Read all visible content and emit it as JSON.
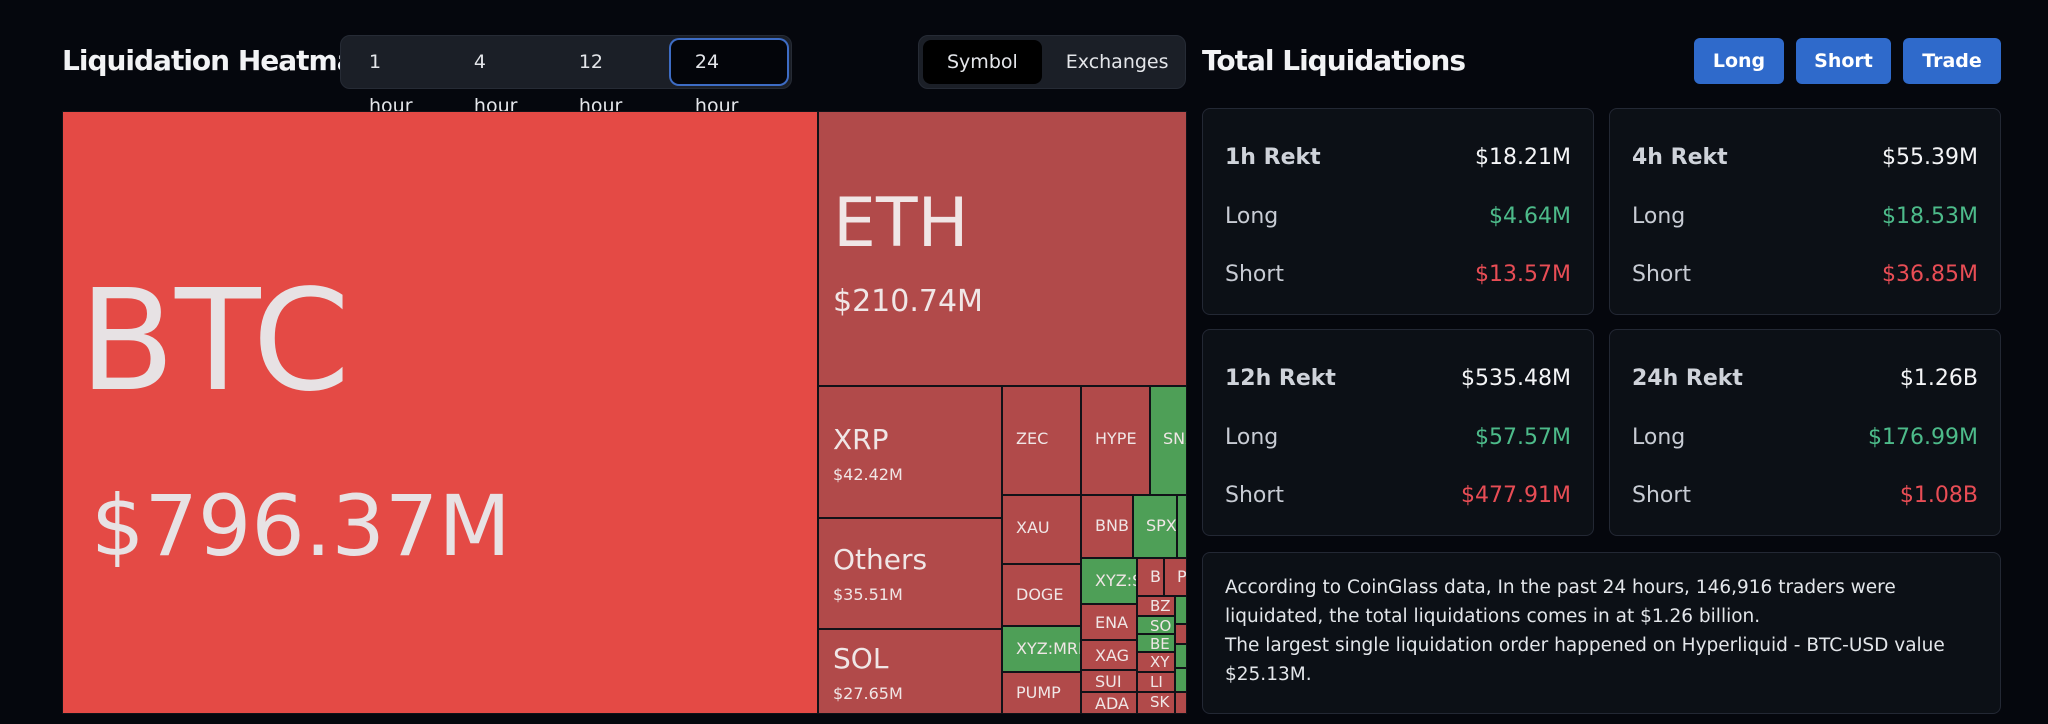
{
  "header": {
    "title": "Liquidation Heatmap",
    "time_tabs": [
      "1 hour",
      "4 hour",
      "12 hour",
      "24 hour"
    ],
    "active_time_tab": "24 hour",
    "view_tabs": [
      "Symbol",
      "Exchanges"
    ],
    "active_view_tab": "Symbol"
  },
  "totals": {
    "title": "Total Liquidations",
    "buttons": {
      "long": "Long",
      "short": "Short",
      "trade": "Trade"
    },
    "cards": [
      {
        "label": "1h Rekt",
        "total": "$18.21M",
        "long_label": "Long",
        "long": "$4.64M",
        "short_label": "Short",
        "short": "$13.57M"
      },
      {
        "label": "4h Rekt",
        "total": "$55.39M",
        "long_label": "Long",
        "long": "$18.53M",
        "short_label": "Short",
        "short": "$36.85M"
      },
      {
        "label": "12h Rekt",
        "total": "$535.48M",
        "long_label": "Long",
        "long": "$57.57M",
        "short_label": "Short",
        "short": "$477.91M"
      },
      {
        "label": "24h Rekt",
        "total": "$1.26B",
        "long_label": "Long",
        "long": "$176.99M",
        "short_label": "Short",
        "short": "$1.08B"
      }
    ],
    "summary_line1": "According to CoinGlass data, In the past 24 hours, 146,916 traders were liquidated, the total liquidations comes in at $1.26 billion.",
    "summary_line2": "The largest single liquidation order happened on Hyperliquid - BTC-USD value $25.13M."
  },
  "heatmap": {
    "btc": {
      "symbol": "BTC",
      "value": "$796.37M"
    },
    "eth": {
      "symbol": "ETH",
      "value": "$210.74M"
    },
    "xrp": {
      "symbol": "XRP",
      "value": "$42.42M"
    },
    "others": {
      "symbol": "Others",
      "value": "$35.51M"
    },
    "sol": {
      "symbol": "SOL",
      "value": "$27.65M"
    },
    "small": [
      "ZEC",
      "HYPE",
      "SNX",
      "XAU",
      "BNB",
      "SPX",
      "DOGE",
      "XYZ:S",
      "B",
      "P",
      "XYZ:MRE",
      "ENA",
      "XAG",
      "SUI",
      "ADA",
      "PUMP",
      "BZ",
      "SO",
      "BE",
      "XY",
      "LI",
      "SK"
    ],
    "colors": {
      "btc": "#e44a45",
      "loss": "#b14a4a",
      "gain": "#4e9f57"
    }
  }
}
